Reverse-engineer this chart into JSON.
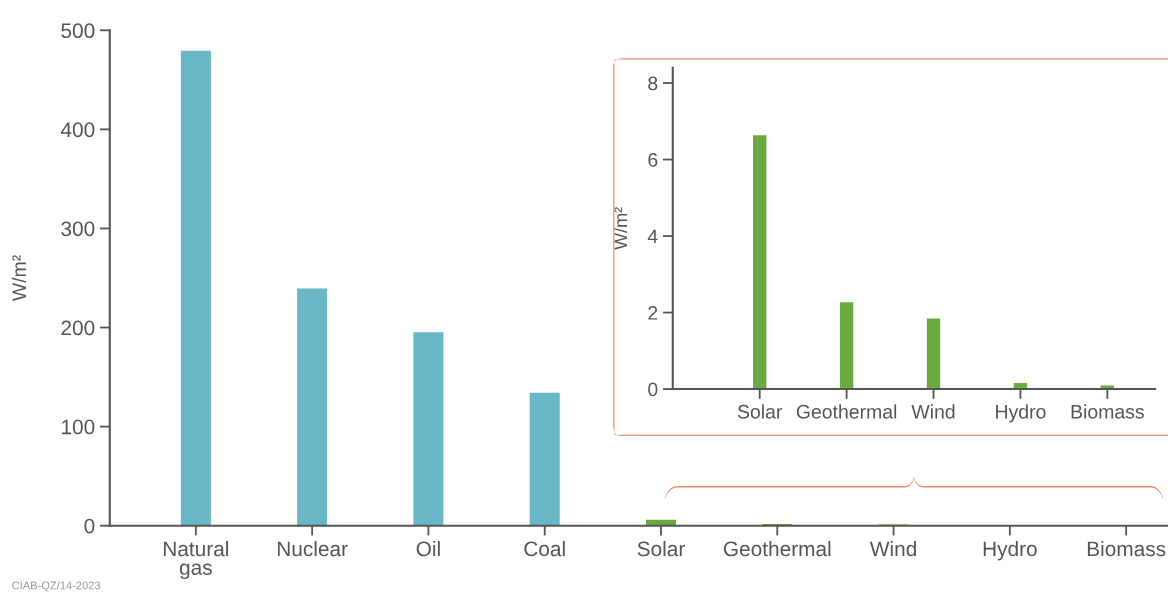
{
  "chart_data": [
    {
      "type": "bar",
      "ylabel": "W/m²",
      "categories": [
        "Natural\ngas",
        "Nuclear",
        "Oil",
        "Coal",
        "Solar",
        "Geothermal",
        "Wind",
        "Hydro",
        "Biomass"
      ],
      "values": [
        480,
        240,
        196,
        135,
        6.65,
        2.29,
        1.86,
        0.18,
        0.11
      ],
      "colors": [
        "#67b7c7",
        "#67b7c7",
        "#67b7c7",
        "#67b7c7",
        "#6aab3f",
        "#6aab3f",
        "#6aab3f",
        "#6aab3f",
        "#6aab3f"
      ],
      "ylim": [
        0,
        500
      ],
      "yticks": [
        0,
        100,
        200,
        300,
        400,
        500
      ],
      "grid": false,
      "legend": false,
      "annotations": [
        "CIAB-QZ/14-2023"
      ]
    },
    {
      "type": "bar",
      "ylabel": "W/m²",
      "categories": [
        "Solar",
        "Geothermal",
        "Wind",
        "Hydro",
        "Biomass"
      ],
      "values": [
        6.65,
        2.29,
        1.86,
        0.18,
        0.11
      ],
      "color": "#6aab3f",
      "ylim": [
        0,
        8.4
      ],
      "yticks": [
        0,
        2,
        4,
        6,
        8
      ],
      "grid": false,
      "legend": false
    }
  ]
}
